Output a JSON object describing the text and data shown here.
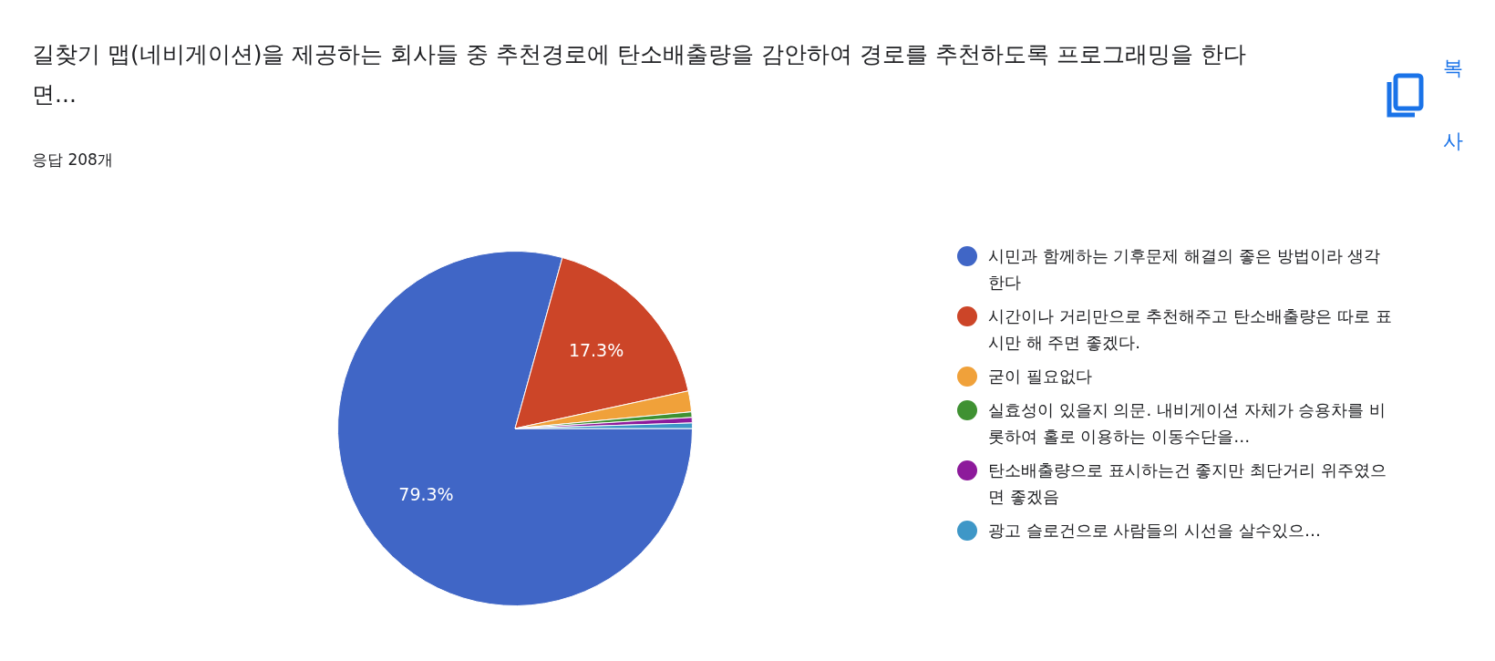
{
  "chart_data": {
    "type": "pie",
    "title": "길찾기 맵(네비게이션)을 제공하는 회사들 중 추천경로에 탄소배출량을 감안하여 경로를 추천하도록 프로그래밍을 한다면...",
    "subtitle": "응답 208개",
    "categories": [
      "시민과 함께하는 기후문제 해결의 좋은 방법이라 생각한다",
      "시간이나 거리만으로 추천해주고 탄소배출량은 따로 표시만 해 주면 좋겠다.",
      "굳이 필요없다",
      "실효성이 있을지 의문. 내비게이션 자체가 승용차를 비롯하여 홀로 이용하는 이동수단을…",
      "탄소배출량으로 표시하는건 좋지만 최단거리 위주였으면 좋겠음",
      "광고 슬로건으로 사람들의 시선을 살수있으…"
    ],
    "values": [
      79.3,
      17.3,
      1.9,
      0.5,
      0.5,
      0.5
    ],
    "colors": [
      "#4066c6",
      "#cc4528",
      "#f0a13a",
      "#3f9132",
      "#8d1a9b",
      "#3e97c7"
    ],
    "value_labels": [
      "79.3%",
      "17.3%",
      null,
      null,
      null,
      null
    ],
    "legend": "right",
    "annotations": [
      "복사"
    ]
  }
}
